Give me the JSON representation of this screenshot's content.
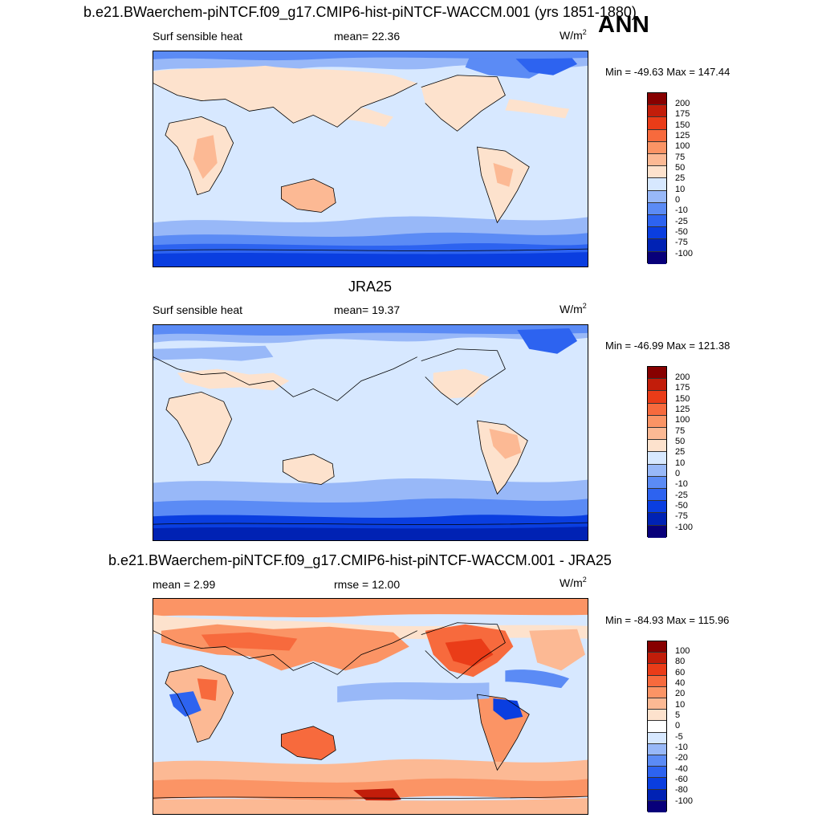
{
  "figure": {
    "season": "ANN",
    "colors": {
      "scale13": [
        "#08007a",
        "#0022b4",
        "#0a3ee0",
        "#2d63f0",
        "#5b8bf5",
        "#98b8f8",
        "#d7e8ff",
        "#fde2cd",
        "#fcb994",
        "#fb9465",
        "#f76a3d",
        "#ea3c18",
        "#c21d0a",
        "#870000"
      ],
      "diff": [
        "#08007a",
        "#0022b4",
        "#0a3ee0",
        "#2d63f0",
        "#5b8bf5",
        "#98b8f8",
        "#d7e8ff",
        "#ffffff",
        "#fde2cd",
        "#fcb994",
        "#fb9465",
        "#f76a3d",
        "#ea3c18",
        "#c21d0a",
        "#870000"
      ]
    }
  },
  "panels": [
    {
      "title": "b.e21.BWaerchem-piNTCF.f09_g17.CMIP6-hist-piNTCF-WACCM.001 (yrs 1851-1880)",
      "left_label": "Surf sensible heat",
      "center_label": "mean=  22.36",
      "unit_base": "W/m",
      "unit_exp": "2",
      "minmax": "Min = -49.63 Max = 147.44",
      "levels": [
        "200",
        "175",
        "150",
        "125",
        "100",
        "75",
        "50",
        "25",
        "10",
        "0",
        "-10",
        "-25",
        "-50",
        "-75",
        "-100"
      ]
    },
    {
      "title": "JRA25",
      "left_label": "Surf sensible heat",
      "center_label": "mean=  19.37",
      "unit_base": "W/m",
      "unit_exp": "2",
      "minmax": "Min = -46.99 Max = 121.38",
      "levels": [
        "200",
        "175",
        "150",
        "125",
        "100",
        "75",
        "50",
        "25",
        "10",
        "0",
        "-10",
        "-25",
        "-50",
        "-75",
        "-100"
      ]
    },
    {
      "title": "b.e21.BWaerchem-piNTCF.f09_g17.CMIP6-hist-piNTCF-WACCM.001 - JRA25",
      "left_label": "mean =   2.99",
      "center_label": "rmse =  12.00",
      "unit_base": "W/m",
      "unit_exp": "2",
      "minmax": "Min = -84.93 Max = 115.96",
      "levels": [
        "100",
        "80",
        "60",
        "40",
        "20",
        "10",
        "5",
        "0",
        "-5",
        "-10",
        "-20",
        "-40",
        "-60",
        "-80",
        "-100"
      ]
    }
  ]
}
